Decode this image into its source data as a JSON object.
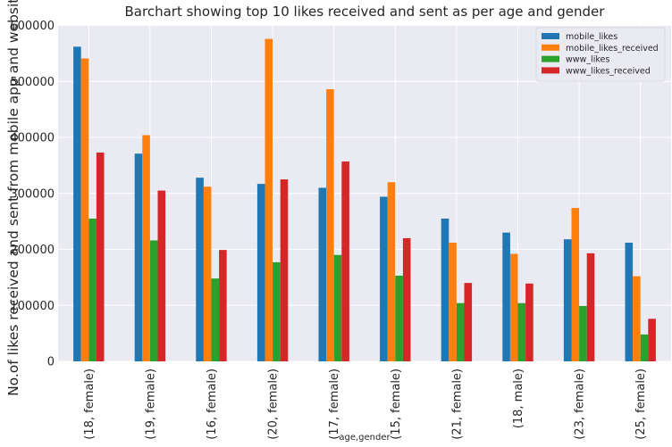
{
  "chart_data": {
    "type": "bar",
    "title": "Barchart showing top 10 likes received and sent as per age and gender",
    "xlabel": "age,gender",
    "ylabel": "No.of likes received and sent from mobile app and website",
    "categories": [
      "(18, female)",
      "(19, female)",
      "(16, female)",
      "(20, female)",
      "(17, female)",
      "(15, female)",
      "(21, female)",
      "(18, male)",
      "(23, female)",
      "(25, female)"
    ],
    "series": [
      {
        "name": "mobile_likes",
        "color": "#1f77b4",
        "values": [
          562000,
          371000,
          328000,
          317000,
          310000,
          294000,
          255000,
          230000,
          218000,
          212000
        ]
      },
      {
        "name": "mobile_likes_received",
        "color": "#ff7f0e",
        "values": [
          541000,
          404000,
          312000,
          576000,
          486000,
          320000,
          212000,
          192000,
          274000,
          152000
        ]
      },
      {
        "name": "www_likes",
        "color": "#2ca02c",
        "values": [
          255000,
          216000,
          148000,
          177000,
          190000,
          153000,
          104000,
          104000,
          99000,
          48000
        ]
      },
      {
        "name": "www_likes_received",
        "color": "#d62728",
        "values": [
          373000,
          305000,
          199000,
          325000,
          357000,
          220000,
          140000,
          139000,
          193000,
          76000
        ]
      }
    ],
    "ylim": [
      0,
      600000
    ],
    "yticks": [
      "0",
      "100000",
      "200000",
      "300000",
      "400000",
      "500000",
      "600000"
    ],
    "grid": true,
    "legend_position": "top-right"
  }
}
